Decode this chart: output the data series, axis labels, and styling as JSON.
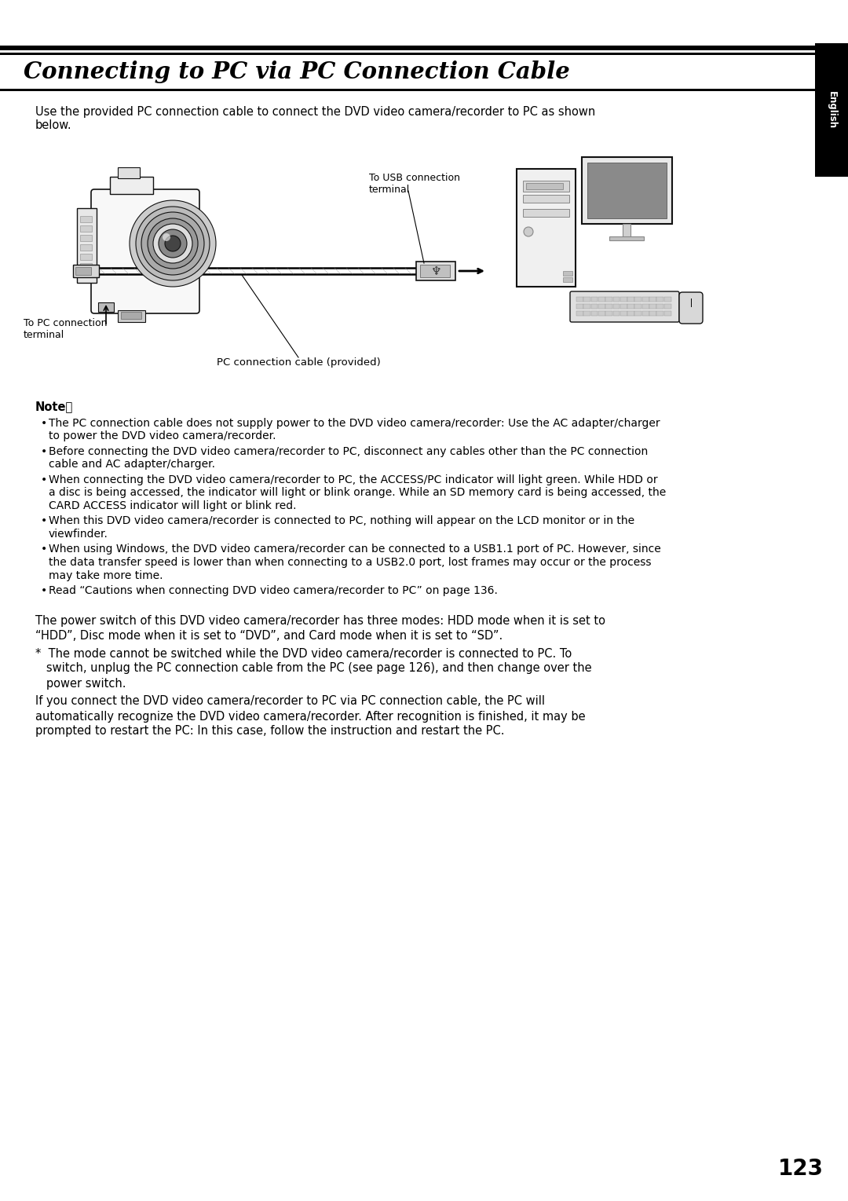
{
  "title": "Connecting to PC via PC Connection Cable",
  "bg_color": "#ffffff",
  "sidebar_color": "#000000",
  "sidebar_text": "English",
  "page_number": "123",
  "intro_text": "Use the provided PC connection cable to connect the DVD video camera/recorder to PC as shown\nbelow.",
  "label_pc_connection": "To PC connection\nterminal",
  "label_usb_connection": "To USB connection\nterminal",
  "label_cable": "PC connection cable (provided)",
  "note_title": "Note：",
  "note_bullets": [
    "The PC connection cable does not supply power to the DVD video camera/recorder: Use the AC adapter/charger\n  to power the DVD video camera/recorder.",
    "Before connecting the DVD video camera/recorder to PC, disconnect any cables other than the PC connection\n  cable and AC adapter/charger.",
    "When connecting the DVD video camera/recorder to PC, the ACCESS/PC indicator will light green. While HDD or\n  a disc is being accessed, the indicator will light or blink orange. While an SD memory card is being accessed, the\n  CARD ACCESS indicator will light or blink red.",
    "When this DVD video camera/recorder is connected to PC, nothing will appear on the LCD monitor or in the\n  viewfinder.",
    "When using Windows, the DVD video camera/recorder can be connected to a USB1.1 port of PC. However, since\n  the data transfer speed is lower than when connecting to a USB2.0 port, lost frames may occur or the process\n  may take more time.",
    "Read “Cautions when connecting DVD video camera/recorder to PC” on page 136."
  ],
  "paragraph1": "The power switch of this DVD video camera/recorder has three modes: HDD mode when it is set to\n“HDD”, Disc mode when it is set to “DVD”, and Card mode when it is set to “SD”.",
  "paragraph2": "*  The mode cannot be switched while the DVD video camera/recorder is connected to PC. To\n   switch, unplug the PC connection cable from the PC (see page 126), and then change over the\n   power switch.",
  "paragraph3": "If you connect the DVD video camera/recorder to PC via PC connection cable, the PC will\nautomatically recognize the DVD video camera/recorder. After recognition is finished, it may be\nprompted to restart the PC: In this case, follow the instruction and restart the PC."
}
